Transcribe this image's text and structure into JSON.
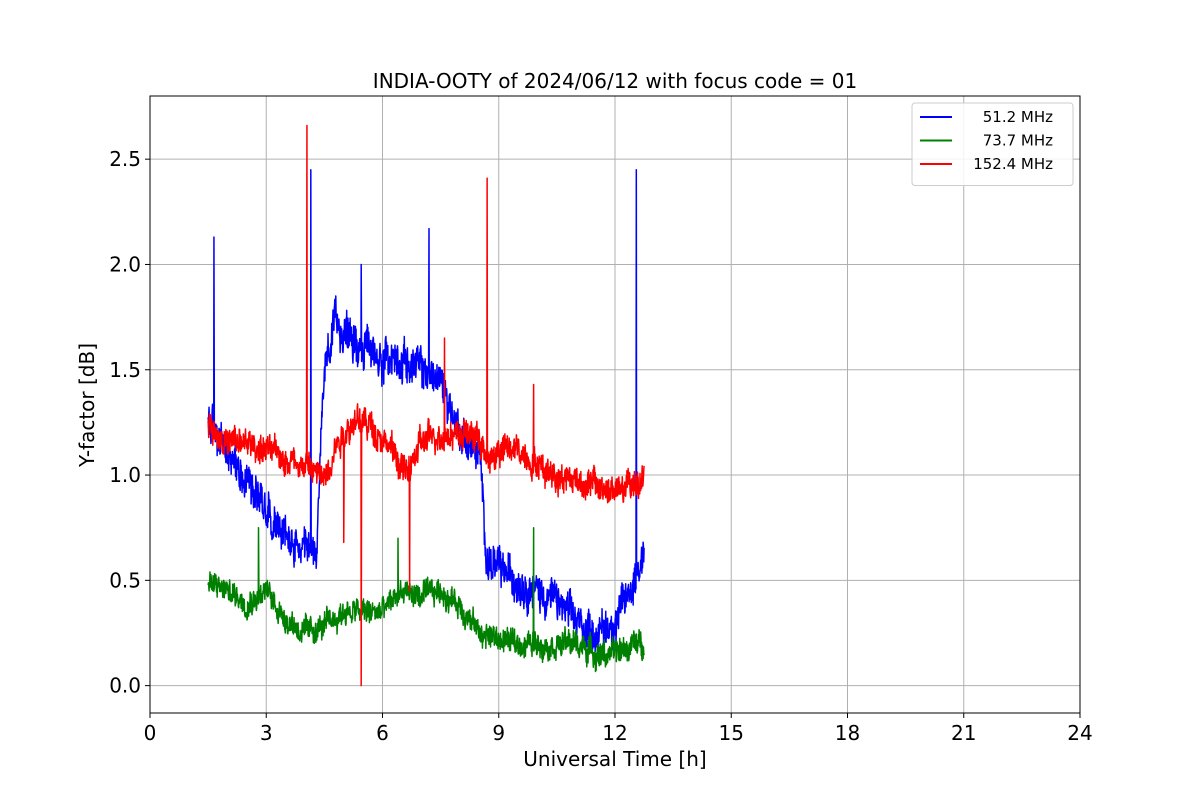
{
  "chart_data": {
    "type": "line",
    "title": "INDIA-OOTY of 2024/06/12 with focus code = 01",
    "xlabel": "Universal Time [h]",
    "ylabel": "Y-factor [dB]",
    "xlim": [
      0,
      24
    ],
    "ylim": [
      -0.13,
      2.8
    ],
    "xticks": [
      0,
      3,
      6,
      9,
      12,
      15,
      18,
      21,
      24
    ],
    "xtick_labels": [
      "0",
      "3",
      "6",
      "9",
      "12",
      "15",
      "18",
      "21",
      "24"
    ],
    "yticks": [
      0.0,
      0.5,
      1.0,
      1.5,
      2.0,
      2.5
    ],
    "ytick_labels": [
      "0.0",
      "0.5",
      "1.0",
      "1.5",
      "2.0",
      "2.5"
    ],
    "grid": true,
    "legend_position": "top-right",
    "series": [
      {
        "name": "51.2 MHz",
        "color": "#0000ff",
        "noise": 0.09,
        "x": [
          1.5,
          1.7,
          2.0,
          2.5,
          3.0,
          3.5,
          4.0,
          4.3,
          4.5,
          4.8,
          5.2,
          5.6,
          6.0,
          6.5,
          7.0,
          7.5,
          8.0,
          8.5,
          8.7,
          9.0,
          9.5,
          10.0,
          10.5,
          11.0,
          11.5,
          12.0,
          12.4,
          12.75
        ],
        "y": [
          1.25,
          1.2,
          1.1,
          1.0,
          0.85,
          0.7,
          0.6,
          0.65,
          1.5,
          1.72,
          1.65,
          1.6,
          1.55,
          1.55,
          1.5,
          1.45,
          1.2,
          1.1,
          0.6,
          0.55,
          0.5,
          0.45,
          0.4,
          0.3,
          0.25,
          0.3,
          0.45,
          0.65
        ],
        "spikes": [
          [
            1.65,
            2.13
          ],
          [
            4.15,
            2.45
          ],
          [
            5.45,
            2.0
          ],
          [
            7.2,
            2.17
          ],
          [
            12.55,
            2.45
          ]
        ]
      },
      {
        "name": "73.7 MHz",
        "color": "#008000",
        "noise": 0.06,
        "x": [
          1.5,
          2.0,
          2.5,
          3.0,
          3.5,
          4.0,
          4.5,
          5.0,
          5.5,
          6.0,
          6.5,
          7.0,
          7.5,
          8.0,
          8.5,
          9.0,
          9.5,
          10.0,
          10.5,
          11.0,
          11.5,
          12.0,
          12.5,
          12.75
        ],
        "y": [
          0.48,
          0.45,
          0.4,
          0.45,
          0.32,
          0.25,
          0.28,
          0.35,
          0.35,
          0.35,
          0.45,
          0.42,
          0.45,
          0.38,
          0.25,
          0.22,
          0.2,
          0.2,
          0.2,
          0.2,
          0.15,
          0.15,
          0.2,
          0.2
        ],
        "spikes": [
          [
            2.8,
            0.75
          ],
          [
            6.4,
            0.7
          ],
          [
            9.9,
            0.75
          ]
        ]
      },
      {
        "name": "152.4 MHz",
        "color": "#ff0000",
        "noise": 0.07,
        "x": [
          1.5,
          2.0,
          2.5,
          3.0,
          3.5,
          4.0,
          4.5,
          4.8,
          5.2,
          5.6,
          6.0,
          6.3,
          6.6,
          7.0,
          7.5,
          8.0,
          8.5,
          8.7,
          9.0,
          9.5,
          10.0,
          10.5,
          11.0,
          11.5,
          12.0,
          12.5,
          12.75
        ],
        "y": [
          1.25,
          1.15,
          1.15,
          1.12,
          1.08,
          1.05,
          0.98,
          1.15,
          1.25,
          1.25,
          1.18,
          1.1,
          1.0,
          1.15,
          1.2,
          1.2,
          1.18,
          1.05,
          1.12,
          1.12,
          1.05,
          1.0,
          0.98,
          0.95,
          0.92,
          0.95,
          1.0
        ],
        "spikes": [
          [
            4.05,
            2.66
          ],
          [
            8.7,
            2.41
          ],
          [
            9.9,
            1.43
          ],
          [
            7.6,
            1.65
          ]
        ],
        "dips": [
          [
            5.45,
            0.0
          ],
          [
            6.7,
            0.45
          ],
          [
            5.0,
            0.68
          ]
        ]
      }
    ]
  }
}
